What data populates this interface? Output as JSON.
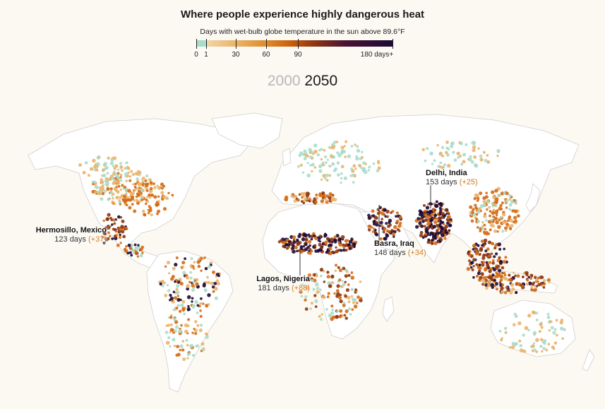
{
  "title": "Where people experience highly dangerous heat",
  "subtitle": "Days with wet-bulb globe temperature in the sun above 89.6°F",
  "legend": {
    "stops": [
      {
        "value": 0,
        "label": "0",
        "color": "#a8dccb"
      },
      {
        "value": 1,
        "label": "1",
        "color": "#f3d3a6"
      },
      {
        "value": 30,
        "label": "30",
        "color": "#eab46b"
      },
      {
        "value": 60,
        "label": "60",
        "color": "#d46a14"
      },
      {
        "value": 90,
        "label": "90",
        "color": "#8e3611"
      },
      {
        "value": 180,
        "label": "180 days+",
        "color": "#1c0a36"
      }
    ]
  },
  "years": {
    "before": "2000",
    "after": "2050",
    "selected": "2050"
  },
  "colors": {
    "background": "#fcf9f2",
    "land": "#ffffff",
    "border": "#cfcfcf",
    "none": "#a8dccb",
    "low": "#eab46b",
    "mid": "#d46a14",
    "high": "#8e3611",
    "extreme": "#1c0a36",
    "delta": "#d07a1c"
  },
  "annotations": [
    {
      "name": "Hermosillo, Mexico",
      "days": "123 days",
      "delta": "(+37)"
    },
    {
      "name": "Lagos, Nigeria",
      "days": "181 days",
      "delta": "(+88)"
    },
    {
      "name": "Basra, Iraq",
      "days": "148 days",
      "delta": "(+34)"
    },
    {
      "name": "Delhi, India",
      "days": "153 days",
      "delta": "(+25)"
    }
  ]
}
